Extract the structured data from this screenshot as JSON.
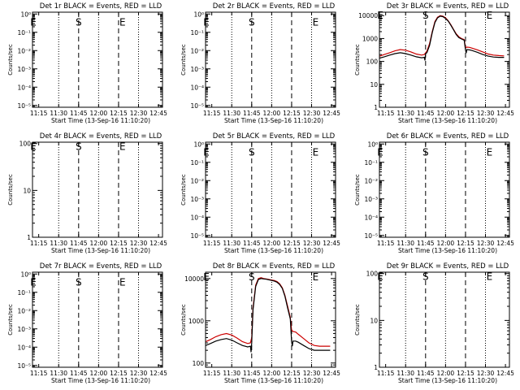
{
  "page": {
    "background": "#ffffff",
    "axis_color": "#000000"
  },
  "colors": {
    "events": "#000000",
    "lld": "#cc0000"
  },
  "common": {
    "xlabel": "Start Time (13-Sep-16 11:10:20)",
    "ylabel": "Counts/sec",
    "x_ticks": [
      "11:15",
      "11:30",
      "11:45",
      "12:00",
      "12:15",
      "12:30",
      "12:45"
    ],
    "x_tick_minutes": [
      15,
      30,
      45,
      60,
      75,
      90,
      105
    ],
    "xlim_minutes": [
      10.33,
      108
    ],
    "dotted_lines_minutes": [
      30,
      60,
      90
    ],
    "dashed_lines_minutes": [
      45,
      75
    ],
    "grid": "off"
  },
  "chart_data": [
    {
      "type": "line",
      "title": "Det 1r BLACK = Events, RED = LLD",
      "scale": "log",
      "y_tick_labels": [
        "10⁻⁵",
        "10⁻⁴",
        "10⁻³",
        "10⁻²",
        "10⁻¹",
        "10⁰"
      ],
      "y_tick_exps": [
        -5,
        -4,
        -3,
        -2,
        -1,
        0
      ],
      "ylim_exp": [
        -5.1,
        0.1
      ],
      "markers": [
        {
          "text": "E",
          "x": 11,
          "y_exp": -0.4
        },
        {
          "text": "S",
          "x": 45,
          "y_exp": -0.4
        },
        {
          "text": "E",
          "x": 78,
          "y_exp": -0.4
        }
      ],
      "series": []
    },
    {
      "type": "line",
      "title": "Det 2r BLACK = Events, RED = LLD",
      "scale": "log",
      "y_tick_labels": [
        "10⁻⁵",
        "10⁻⁴",
        "10⁻³",
        "10⁻²",
        "10⁻¹",
        "10⁰"
      ],
      "y_tick_exps": [
        -5,
        -4,
        -3,
        -2,
        -1,
        0
      ],
      "ylim_exp": [
        -5.1,
        0.1
      ],
      "markers": [
        {
          "text": "E",
          "x": 11,
          "y_exp": -0.4
        },
        {
          "text": "S",
          "x": 45,
          "y_exp": -0.4
        },
        {
          "text": "E",
          "x": 93,
          "y_exp": -0.4
        }
      ],
      "series": []
    },
    {
      "type": "line",
      "title": "Det 3r BLACK = Events, RED = LLD",
      "scale": "log",
      "y_tick_labels": [
        "10000",
        "1000",
        "100",
        "10",
        "1"
      ],
      "y_tick_exps": [
        4,
        3,
        2,
        1,
        0
      ],
      "ylim_exp": [
        0,
        4.15
      ],
      "markers": [
        {
          "text": "E",
          "x": 11,
          "y_exp": 4.05
        },
        {
          "text": "S",
          "x": 45,
          "y_exp": 4.05
        },
        {
          "text": "E",
          "x": 93,
          "y_exp": 4.05
        }
      ],
      "series": [
        {
          "name": "LLD",
          "color": "#cc0000",
          "x": [
            10.5,
            14,
            18,
            22,
            26,
            30,
            34,
            38,
            42,
            44,
            46,
            48,
            50,
            52,
            54,
            56,
            58,
            60,
            62,
            64,
            66,
            68,
            70,
            72,
            74,
            75,
            76,
            78,
            80,
            84,
            88,
            92,
            96,
            100,
            104
          ],
          "y": [
            170,
            200,
            240,
            290,
            330,
            310,
            260,
            210,
            190,
            200,
            280,
            600,
            2000,
            5500,
            8500,
            10000,
            9500,
            8000,
            6000,
            4000,
            2500,
            1600,
            1200,
            1000,
            900,
            400,
            420,
            410,
            380,
            320,
            260,
            210,
            190,
            180,
            175
          ]
        },
        {
          "name": "Events",
          "color": "#000000",
          "x": [
            10.5,
            14,
            18,
            22,
            26,
            30,
            34,
            38,
            42,
            44,
            44.5,
            45,
            46,
            48,
            50,
            52,
            54,
            56,
            58,
            60,
            62,
            64,
            66,
            68,
            70,
            72,
            74,
            75,
            75.5,
            76,
            78,
            80,
            84,
            88,
            92,
            96,
            100,
            104
          ],
          "y": [
            140,
            160,
            190,
            220,
            240,
            220,
            190,
            160,
            145,
            150,
            110,
            220,
            240,
            500,
            1800,
            5000,
            8000,
            9500,
            9000,
            7500,
            5800,
            3800,
            2400,
            1500,
            1100,
            950,
            850,
            320,
            230,
            330,
            320,
            300,
            250,
            200,
            170,
            155,
            150,
            150
          ]
        }
      ]
    },
    {
      "type": "line",
      "title": "Det 4r BLACK = Events, RED = LLD",
      "scale": "log",
      "y_tick_labels": [
        "100",
        "10",
        "1"
      ],
      "y_tick_exps": [
        2,
        1,
        0
      ],
      "ylim_exp": [
        0,
        2.03
      ],
      "markers": [
        {
          "text": "E",
          "x": 11,
          "y_exp": 1.95
        },
        {
          "text": "S",
          "x": 45,
          "y_exp": 1.95
        },
        {
          "text": "E",
          "x": 78,
          "y_exp": 1.95
        }
      ],
      "series": []
    },
    {
      "type": "line",
      "title": "Det 5r BLACK = Events, RED = LLD",
      "scale": "log",
      "y_tick_labels": [
        "10⁻⁵",
        "10⁻⁴",
        "10⁻³",
        "10⁻²",
        "10⁻¹",
        "10⁰"
      ],
      "y_tick_exps": [
        -5,
        -4,
        -3,
        -2,
        -1,
        0
      ],
      "ylim_exp": [
        -5.1,
        0.1
      ],
      "markers": [
        {
          "text": "E",
          "x": 11,
          "y_exp": -0.4
        },
        {
          "text": "S",
          "x": 45,
          "y_exp": -0.4
        },
        {
          "text": "E",
          "x": 93,
          "y_exp": -0.4
        }
      ],
      "series": []
    },
    {
      "type": "line",
      "title": "Det 6r BLACK = Events, RED = LLD",
      "scale": "log",
      "y_tick_labels": [
        "10⁻⁵",
        "10⁻⁴",
        "10⁻³",
        "10⁻²",
        "10⁻¹",
        "10⁰"
      ],
      "y_tick_exps": [
        -5,
        -4,
        -3,
        -2,
        -1,
        0
      ],
      "ylim_exp": [
        -5.1,
        0.1
      ],
      "markers": [
        {
          "text": "E",
          "x": 11,
          "y_exp": -0.4
        },
        {
          "text": "S",
          "x": 45,
          "y_exp": -0.4
        },
        {
          "text": "E",
          "x": 93,
          "y_exp": -0.4
        }
      ],
      "series": []
    },
    {
      "type": "line",
      "title": "Det 7r BLACK = Events, RED = LLD",
      "scale": "log",
      "y_tick_labels": [
        "10⁻⁵",
        "10⁻⁴",
        "10⁻³",
        "10⁻²",
        "10⁻¹",
        "10⁰"
      ],
      "y_tick_exps": [
        -5,
        -4,
        -3,
        -2,
        -1,
        0
      ],
      "ylim_exp": [
        -5.1,
        0.1
      ],
      "markers": [
        {
          "text": "E",
          "x": 11,
          "y_exp": -0.4
        },
        {
          "text": "S",
          "x": 45,
          "y_exp": -0.4
        },
        {
          "text": "E",
          "x": 78,
          "y_exp": -0.4
        }
      ],
      "series": []
    },
    {
      "type": "line",
      "title": "Det 8r BLACK = Events, RED = LLD",
      "scale": "log",
      "y_tick_labels": [
        "10000",
        "1000",
        "100"
      ],
      "y_tick_exps": [
        4,
        3,
        2
      ],
      "ylim_exp": [
        1.9,
        4.15
      ],
      "markers": [
        {
          "text": "E",
          "x": 11,
          "y_exp": 4.05
        },
        {
          "text": "S",
          "x": 45,
          "y_exp": 4.05
        },
        {
          "text": "E",
          "x": 93,
          "y_exp": 4.05
        }
      ],
      "series": [
        {
          "name": "LLD",
          "color": "#cc0000",
          "x": [
            10.5,
            14,
            18,
            22,
            26,
            30,
            34,
            38,
            42,
            44,
            45,
            46,
            48,
            50,
            52,
            54,
            56,
            58,
            60,
            62,
            64,
            66,
            68,
            70,
            72,
            74,
            75,
            76,
            78,
            80,
            84,
            88,
            92,
            96,
            100,
            104
          ],
          "y": [
            320,
            360,
            420,
            470,
            500,
            460,
            390,
            320,
            290,
            300,
            400,
            2000,
            7000,
            10000,
            10500,
            10000,
            9800,
            9500,
            9200,
            9000,
            8500,
            7500,
            6000,
            4000,
            2200,
            1200,
            600,
            560,
            540,
            480,
            380,
            300,
            260,
            250,
            250,
            250
          ]
        },
        {
          "name": "Events",
          "color": "#000000",
          "x": [
            10.5,
            14,
            18,
            22,
            26,
            30,
            34,
            38,
            42,
            44,
            44.5,
            45,
            46,
            48,
            50,
            52,
            54,
            56,
            58,
            60,
            62,
            64,
            66,
            68,
            70,
            72,
            74,
            75,
            75.5,
            76,
            78,
            80,
            84,
            88,
            92,
            96,
            100,
            104
          ],
          "y": [
            260,
            290,
            330,
            360,
            380,
            350,
            300,
            260,
            240,
            250,
            180,
            300,
            1800,
            6500,
            9500,
            10000,
            9800,
            9600,
            9300,
            9000,
            8700,
            8200,
            7200,
            5800,
            3800,
            2000,
            1100,
            320,
            250,
            330,
            330,
            310,
            260,
            220,
            200,
            200,
            200,
            200
          ]
        }
      ]
    },
    {
      "type": "line",
      "title": "Det 9r BLACK = Events, RED = LLD",
      "scale": "log",
      "y_tick_labels": [
        "100",
        "10",
        "1"
      ],
      "y_tick_exps": [
        2,
        1,
        0
      ],
      "ylim_exp": [
        0,
        2.03
      ],
      "markers": [
        {
          "text": "E",
          "x": 11,
          "y_exp": 1.95
        },
        {
          "text": "S",
          "x": 45,
          "y_exp": 1.95
        },
        {
          "text": "E",
          "x": 93,
          "y_exp": 1.95
        }
      ],
      "series": []
    }
  ]
}
